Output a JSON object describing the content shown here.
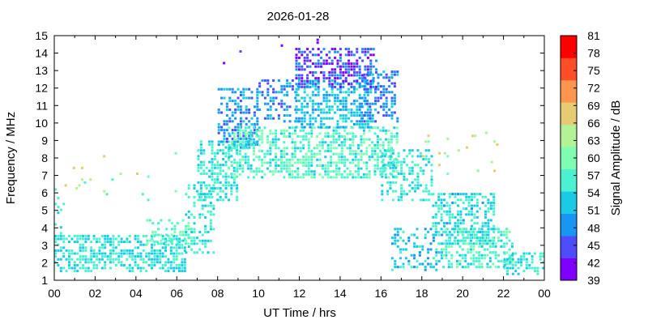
{
  "chart_data": {
    "type": "heatmap",
    "title": "2026-01-28",
    "xlabel": "UT Time / hrs",
    "ylabel": "Frequency / MHz",
    "xlim": [
      0,
      24
    ],
    "ylim": [
      1,
      15
    ],
    "x_ticks": [
      "00",
      "02",
      "04",
      "06",
      "08",
      "10",
      "12",
      "14",
      "16",
      "18",
      "20",
      "22",
      "00"
    ],
    "y_ticks": [
      "1",
      "2",
      "3",
      "4",
      "5",
      "6",
      "7",
      "8",
      "9",
      "10",
      "11",
      "12",
      "13",
      "14",
      "15"
    ],
    "colorbar": {
      "label": "Signal Amplitude / dB",
      "range": [
        39,
        81
      ],
      "ticks": [
        "39",
        "42",
        "45",
        "48",
        "51",
        "54",
        "57",
        "60",
        "63",
        "66",
        "69",
        "72",
        "75",
        "78",
        "81"
      ],
      "colors": [
        "#7f00ff",
        "#4d4dfc",
        "#1996f3",
        "#1acbe6",
        "#4cf2cf",
        "#7ffeb3",
        "#b3f296",
        "#e6cb73",
        "#ff9650",
        "#ff4d28",
        "#ff0000"
      ]
    },
    "grid": false,
    "regions": [
      {
        "t": [
          0.0,
          6.4
        ],
        "f": [
          1.5,
          3.6
        ],
        "amp": [
          51,
          58
        ],
        "density": 0.55
      },
      {
        "t": [
          0.0,
          0.5
        ],
        "f": [
          3.6,
          6.6
        ],
        "amp": [
          53,
          57
        ],
        "density": 0.12
      },
      {
        "t": [
          4.5,
          6.8
        ],
        "f": [
          3.0,
          4.5
        ],
        "amp": [
          54,
          62
        ],
        "density": 0.35
      },
      {
        "t": [
          6.4,
          7.8
        ],
        "f": [
          2.5,
          6.5
        ],
        "amp": [
          52,
          58
        ],
        "density": 0.35
      },
      {
        "t": [
          7.0,
          9.0
        ],
        "f": [
          5.5,
          9.0
        ],
        "amp": [
          52,
          58
        ],
        "density": 0.5
      },
      {
        "t": [
          8.0,
          10.0
        ],
        "f": [
          8.5,
          12.0
        ],
        "amp": [
          45,
          52
        ],
        "density": 0.45
      },
      {
        "t": [
          8.5,
          16.8
        ],
        "f": [
          6.8,
          9.8
        ],
        "amp": [
          53,
          61
        ],
        "density": 0.55
      },
      {
        "t": [
          10.0,
          12.0
        ],
        "f": [
          10.0,
          12.5
        ],
        "amp": [
          45,
          52
        ],
        "density": 0.4
      },
      {
        "t": [
          11.8,
          15.5
        ],
        "f": [
          9.8,
          12.5
        ],
        "amp": [
          49,
          55
        ],
        "density": 0.5
      },
      {
        "t": [
          11.8,
          15.8
        ],
        "f": [
          12.0,
          14.3
        ],
        "amp": [
          40,
          49
        ],
        "density": 0.55
      },
      {
        "t": [
          15.0,
          16.8
        ],
        "f": [
          10.0,
          13.0
        ],
        "amp": [
          44,
          52
        ],
        "density": 0.4
      },
      {
        "t": [
          16.0,
          18.5
        ],
        "f": [
          5.5,
          8.5
        ],
        "amp": [
          52,
          58
        ],
        "density": 0.4
      },
      {
        "t": [
          16.5,
          19.0
        ],
        "f": [
          1.5,
          4.0
        ],
        "amp": [
          49,
          56
        ],
        "density": 0.35
      },
      {
        "t": [
          18.5,
          21.5
        ],
        "f": [
          3.0,
          6.0
        ],
        "amp": [
          50,
          58
        ],
        "density": 0.5
      },
      {
        "t": [
          19.0,
          22.5
        ],
        "f": [
          1.8,
          4.0
        ],
        "amp": [
          53,
          60
        ],
        "density": 0.5
      },
      {
        "t": [
          22.0,
          24.0
        ],
        "f": [
          1.4,
          2.6
        ],
        "amp": [
          52,
          57
        ],
        "density": 0.55
      },
      {
        "t": [
          6.5,
          13.0
        ],
        "f": [
          12.5,
          15.0
        ],
        "amp": [
          39,
          44
        ],
        "density": 0.02
      },
      {
        "t": [
          0.5,
          6.0
        ],
        "f": [
          5.5,
          8.5
        ],
        "amp": [
          55,
          68
        ],
        "density": 0.02
      },
      {
        "t": [
          18.0,
          22.0
        ],
        "f": [
          6.5,
          9.5
        ],
        "amp": [
          60,
          68
        ],
        "density": 0.03
      }
    ]
  }
}
